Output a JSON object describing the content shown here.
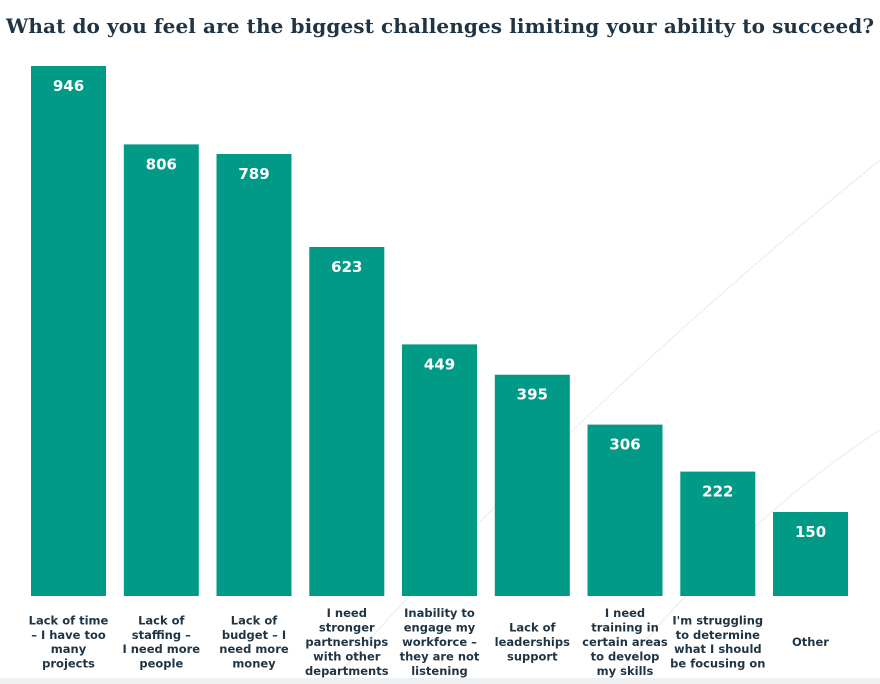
{
  "chart_data": {
    "type": "bar",
    "title": "What do you feel are the biggest challenges limiting your ability to succeed?",
    "categories": [
      [
        "Lack of time",
        "– I have too",
        "many",
        "projects"
      ],
      [
        "Lack of",
        "staffing –",
        "I need more",
        "people"
      ],
      [
        "Lack of",
        "budget – I",
        "need more",
        "money"
      ],
      [
        "I need",
        "stronger",
        "partnerships",
        "with other",
        "departments"
      ],
      [
        "Inability to",
        "engage my",
        "workforce –",
        "they are not",
        "listening"
      ],
      [
        "Lack of",
        "leaderships",
        "support"
      ],
      [
        "I need",
        "training in",
        "certain areas",
        "to develop",
        "my skills"
      ],
      [
        "I'm struggling",
        "to determine",
        "what I should",
        "be focusing on"
      ],
      [
        "Other"
      ]
    ],
    "values": [
      946,
      806,
      789,
      623,
      449,
      395,
      306,
      222,
      150
    ],
    "ylim": [
      0,
      946
    ],
    "grid": false,
    "bar_color": "#009a87"
  }
}
